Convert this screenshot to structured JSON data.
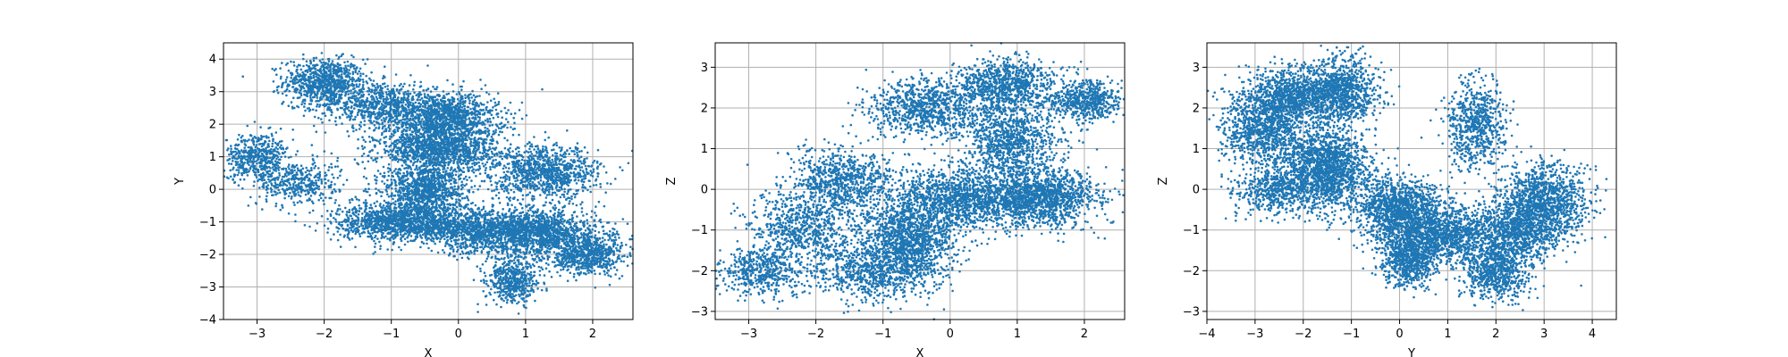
{
  "chart_data": [
    {
      "type": "scatter",
      "title": "",
      "xlabel": "X",
      "ylabel": "Y",
      "xlim": [
        -3.5,
        2.6
      ],
      "ylim": [
        -4,
        4.5
      ],
      "xticks": [
        -3,
        -2,
        -1,
        0,
        1,
        2
      ],
      "yticks": [
        -4,
        -3,
        -2,
        -1,
        0,
        1,
        2,
        3,
        4
      ],
      "grid": true,
      "series": [
        {
          "color": "#1f77b4",
          "clusters": [
            {
              "center": [
                -2.0,
                3.3
              ],
              "spread": [
                0.3,
                0.35
              ],
              "count": 800
            },
            {
              "center": [
                -1.2,
                2.6
              ],
              "spread": [
                0.45,
                0.35
              ],
              "count": 700
            },
            {
              "center": [
                -0.2,
                2.2
              ],
              "spread": [
                0.4,
                0.4
              ],
              "count": 1200
            },
            {
              "center": [
                -0.3,
                1.2
              ],
              "spread": [
                0.45,
                0.35
              ],
              "count": 1300
            },
            {
              "center": [
                -3.0,
                1.0
              ],
              "spread": [
                0.25,
                0.35
              ],
              "count": 500
            },
            {
              "center": [
                -2.4,
                0.2
              ],
              "spread": [
                0.3,
                0.35
              ],
              "count": 400
            },
            {
              "center": [
                -0.5,
                0.0
              ],
              "spread": [
                0.3,
                0.35
              ],
              "count": 900
            },
            {
              "center": [
                -0.8,
                -1.0
              ],
              "spread": [
                0.5,
                0.3
              ],
              "count": 1400
            },
            {
              "center": [
                0.4,
                -1.3
              ],
              "spread": [
                0.45,
                0.35
              ],
              "count": 900
            },
            {
              "center": [
                1.3,
                0.5
              ],
              "spread": [
                0.4,
                0.4
              ],
              "count": 1000
            },
            {
              "center": [
                1.2,
                -1.3
              ],
              "spread": [
                0.45,
                0.35
              ],
              "count": 1200
            },
            {
              "center": [
                1.9,
                -2.0
              ],
              "spread": [
                0.3,
                0.3
              ],
              "count": 700
            },
            {
              "center": [
                0.8,
                -2.8
              ],
              "spread": [
                0.2,
                0.35
              ],
              "count": 500
            }
          ]
        }
      ]
    },
    {
      "type": "scatter",
      "title": "",
      "xlabel": "X",
      "ylabel": "Z",
      "xlim": [
        -3.5,
        2.6
      ],
      "ylim": [
        -3.2,
        3.6
      ],
      "xticks": [
        -3,
        -2,
        -1,
        0,
        1,
        2
      ],
      "yticks": [
        -3,
        -2,
        -1,
        0,
        1,
        2,
        3
      ],
      "grid": true,
      "series": [
        {
          "color": "#1f77b4",
          "clusters": [
            {
              "center": [
                -2.8,
                -2.0
              ],
              "spread": [
                0.3,
                0.3
              ],
              "count": 500
            },
            {
              "center": [
                -2.2,
                -1.0
              ],
              "spread": [
                0.4,
                0.45
              ],
              "count": 700
            },
            {
              "center": [
                -1.6,
                0.2
              ],
              "spread": [
                0.4,
                0.4
              ],
              "count": 800
            },
            {
              "center": [
                -1.2,
                -2.0
              ],
              "spread": [
                0.45,
                0.35
              ],
              "count": 700
            },
            {
              "center": [
                -0.6,
                -1.2
              ],
              "spread": [
                0.35,
                0.55
              ],
              "count": 1400
            },
            {
              "center": [
                -0.4,
                2.0
              ],
              "spread": [
                0.4,
                0.35
              ],
              "count": 900
            },
            {
              "center": [
                0.1,
                -0.2
              ],
              "spread": [
                0.45,
                0.4
              ],
              "count": 1100
            },
            {
              "center": [
                0.8,
                2.5
              ],
              "spread": [
                0.35,
                0.35
              ],
              "count": 900
            },
            {
              "center": [
                0.9,
                1.2
              ],
              "spread": [
                0.35,
                0.45
              ],
              "count": 900
            },
            {
              "center": [
                1.3,
                -0.2
              ],
              "spread": [
                0.45,
                0.35
              ],
              "count": 1500
            },
            {
              "center": [
                2.0,
                2.2
              ],
              "spread": [
                0.25,
                0.25
              ],
              "count": 600
            }
          ]
        }
      ]
    },
    {
      "type": "scatter",
      "title": "",
      "xlabel": "Y",
      "ylabel": "Z",
      "xlim": [
        -4,
        4.5
      ],
      "ylim": [
        -3.2,
        3.6
      ],
      "xticks": [
        -4,
        -3,
        -2,
        -1,
        0,
        1,
        2,
        3,
        4
      ],
      "yticks": [
        -3,
        -2,
        -1,
        0,
        1,
        2,
        3
      ],
      "grid": true,
      "series": [
        {
          "color": "#1f77b4",
          "clusters": [
            {
              "center": [
                -2.8,
                1.5
              ],
              "spread": [
                0.45,
                0.45
              ],
              "count": 1000
            },
            {
              "center": [
                -2.2,
                2.3
              ],
              "spread": [
                0.5,
                0.35
              ],
              "count": 1000
            },
            {
              "center": [
                -1.2,
                2.4
              ],
              "spread": [
                0.35,
                0.4
              ],
              "count": 900
            },
            {
              "center": [
                -1.5,
                0.5
              ],
              "spread": [
                0.45,
                0.5
              ],
              "count": 1600
            },
            {
              "center": [
                -2.6,
                0.0
              ],
              "spread": [
                0.4,
                0.3
              ],
              "count": 500
            },
            {
              "center": [
                0.0,
                -0.5
              ],
              "spread": [
                0.45,
                0.4
              ],
              "count": 1300
            },
            {
              "center": [
                0.2,
                -1.7
              ],
              "spread": [
                0.3,
                0.35
              ],
              "count": 800
            },
            {
              "center": [
                1.0,
                -1.1
              ],
              "spread": [
                0.5,
                0.35
              ],
              "count": 1000
            },
            {
              "center": [
                1.6,
                1.6
              ],
              "spread": [
                0.3,
                0.5
              ],
              "count": 700
            },
            {
              "center": [
                2.0,
                -2.0
              ],
              "spread": [
                0.35,
                0.35
              ],
              "count": 700
            },
            {
              "center": [
                3.0,
                -0.3
              ],
              "spread": [
                0.45,
                0.45
              ],
              "count": 1200
            },
            {
              "center": [
                2.4,
                -1.1
              ],
              "spread": [
                0.45,
                0.35
              ],
              "count": 800
            }
          ]
        }
      ]
    }
  ]
}
